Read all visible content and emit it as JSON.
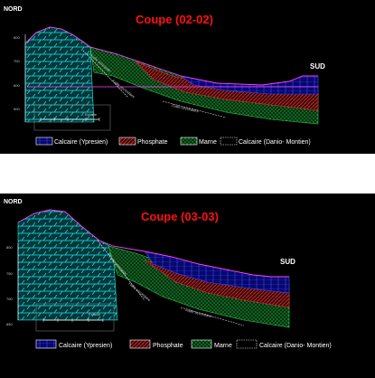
{
  "sections": [
    {
      "title": "Coupe (02-02)",
      "north_label": "NORD",
      "south_label": "SUD",
      "elevation_ticks": [
        "800",
        "700",
        "600",
        "500"
      ],
      "scale_label": "Echelle",
      "fault_labels": [
        "Faille principale",
        "Faille secondaire",
        "Faille secondaire"
      ],
      "legend": [
        {
          "label": "Calcaire (Ypresien)",
          "color": "#1a24ff"
        },
        {
          "label": "Phosphate",
          "color": "#c0282a"
        },
        {
          "label": "Marne",
          "color": "#1fae3c"
        },
        {
          "label": "Calcaire (Danio- Montien)",
          "color": "#ffffff"
        }
      ]
    },
    {
      "title": "Coupe (03-03)",
      "north_label": "NORD",
      "south_label": "SUD",
      "elevation_ticks": [
        "800",
        "750",
        "700",
        "650"
      ],
      "scale_label": "Echelle",
      "fault_labels": [
        "Faille principale",
        "Faille secondaire",
        "Faille secondaire"
      ],
      "legend": [
        {
          "label": "Calcaire (Ypresien)",
          "color": "#1a24ff"
        },
        {
          "label": "Phosphate",
          "color": "#c0282a"
        },
        {
          "label": "Marne",
          "color": "#1fae3c"
        },
        {
          "label": "Calcaire (Danio- Montien)",
          "color": "#ffffff"
        }
      ]
    }
  ]
}
